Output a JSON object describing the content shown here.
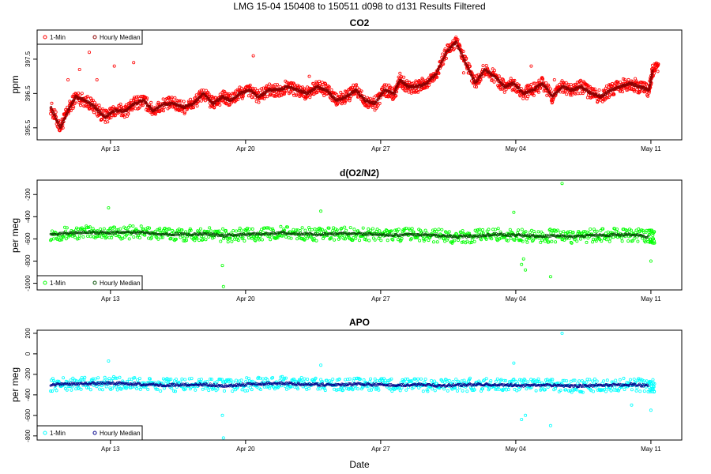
{
  "figure": {
    "title": "LMG   15-04    150408 to 150511     d098 to d131    Results Filtered",
    "xlabel": "Date"
  },
  "chart_data": [
    {
      "type": "scatter",
      "title": "CO2",
      "ylabel": "ppm",
      "x_range_day": [
        9.2,
        42.6
      ],
      "ylim": [
        395.15,
        398.35
      ],
      "y_ticks": [
        395.5,
        396.5,
        397.5
      ],
      "x_ticks": [
        {
          "day": 13,
          "label": "Apr 13"
        },
        {
          "day": 20,
          "label": "Apr 20"
        },
        {
          "day": 27,
          "label": "Apr 27"
        },
        {
          "day": 34,
          "label": "May 04"
        },
        {
          "day": 41,
          "label": "May 11"
        }
      ],
      "legend": {
        "position": "top-left",
        "entries": [
          "1-Min",
          "Hourly Median"
        ]
      },
      "series": [
        {
          "name": "1-Min",
          "color": "#ff0000",
          "fill": false,
          "x": [
            9.9,
            10.4,
            10.8,
            11.2,
            11.7,
            12.2,
            12.7,
            13.2,
            13.8,
            14.2,
            14.7,
            15.2,
            15.8,
            16.3,
            16.8,
            17.3,
            17.8,
            18.3,
            18.8,
            19.2,
            19.7,
            20.2,
            20.7,
            21.2,
            21.7,
            22.2,
            22.7,
            23.2,
            23.7,
            24.2,
            24.7,
            25.2,
            25.7,
            26.2,
            26.7,
            27.2,
            27.7,
            28.0,
            28.4,
            28.9,
            29.4,
            29.9,
            30.4,
            30.9,
            31.4,
            31.9,
            32.4,
            32.9,
            33.4,
            33.9,
            34.4,
            34.9,
            35.4,
            35.9,
            36.4,
            36.9,
            37.4,
            37.9,
            38.4,
            38.9,
            39.4,
            39.9,
            40.4,
            40.9,
            41.1
          ],
          "y": [
            396.1,
            395.5,
            396.0,
            396.4,
            396.3,
            396.1,
            395.8,
            396.0,
            396.0,
            396.2,
            396.3,
            396.0,
            396.2,
            396.2,
            396.1,
            396.2,
            396.5,
            396.2,
            396.4,
            396.3,
            396.5,
            396.6,
            396.4,
            396.6,
            396.6,
            396.7,
            396.6,
            396.5,
            396.7,
            396.6,
            396.3,
            396.4,
            396.6,
            396.3,
            396.2,
            396.6,
            396.5,
            396.9,
            396.7,
            396.7,
            396.8,
            397.1,
            397.7,
            398.0,
            397.4,
            396.8,
            397.2,
            397.0,
            396.7,
            396.8,
            396.5,
            396.6,
            396.8,
            396.4,
            396.7,
            396.6,
            396.7,
            396.5,
            396.4,
            396.6,
            396.7,
            396.8,
            396.7,
            396.6,
            397.2
          ],
          "outliers_x": [
            10.8,
            11.4,
            11.9,
            12.3,
            13.2,
            14.2,
            20.4,
            23.3,
            31.3,
            34.8,
            36.0
          ],
          "outliers_y": [
            396.9,
            397.2,
            397.7,
            396.9,
            397.3,
            397.4,
            397.6,
            397.0,
            397.1,
            397.3,
            396.9
          ]
        },
        {
          "name": "Hourly Median",
          "color": "#8b0000",
          "fill": false,
          "x": [
            9.9,
            10.4,
            10.8,
            11.2,
            11.7,
            12.2,
            12.7,
            13.2,
            13.8,
            14.2,
            14.7,
            15.2,
            15.8,
            16.3,
            16.8,
            17.3,
            17.8,
            18.3,
            18.8,
            19.2,
            19.7,
            20.2,
            20.7,
            21.2,
            21.7,
            22.2,
            22.7,
            23.2,
            23.7,
            24.2,
            24.7,
            25.2,
            25.7,
            26.2,
            26.7,
            27.2,
            27.7,
            28.0,
            28.4,
            28.9,
            29.4,
            29.9,
            30.4,
            30.9,
            31.4,
            31.9,
            32.4,
            32.9,
            33.4,
            33.9,
            34.4,
            34.9,
            35.4,
            35.9,
            36.4,
            36.9,
            37.4,
            37.9,
            38.4,
            38.9,
            39.4,
            39.9,
            40.4,
            40.9,
            41.1
          ],
          "y": [
            396.1,
            395.5,
            396.0,
            396.4,
            396.3,
            396.1,
            395.8,
            396.0,
            396.0,
            396.2,
            396.3,
            396.0,
            396.2,
            396.2,
            396.1,
            396.2,
            396.5,
            396.2,
            396.4,
            396.3,
            396.5,
            396.6,
            396.4,
            396.6,
            396.6,
            396.7,
            396.6,
            396.5,
            396.7,
            396.6,
            396.3,
            396.4,
            396.6,
            396.3,
            396.2,
            396.6,
            396.5,
            396.9,
            396.7,
            396.7,
            396.8,
            397.1,
            397.7,
            398.0,
            397.4,
            396.8,
            397.2,
            397.0,
            396.7,
            396.8,
            396.5,
            396.6,
            396.8,
            396.4,
            396.7,
            396.6,
            396.7,
            396.5,
            396.4,
            396.6,
            396.7,
            396.8,
            396.7,
            396.6,
            397.2
          ]
        }
      ]
    },
    {
      "type": "scatter",
      "title": "d(O2/N2)",
      "ylabel": "per meg",
      "x_range_day": [
        9.2,
        42.6
      ],
      "ylim": [
        -1060,
        -70
      ],
      "y_ticks": [
        -1000,
        -800,
        -600,
        -400,
        -200
      ],
      "x_ticks": [
        {
          "day": 13,
          "label": "Apr 13"
        },
        {
          "day": 20,
          "label": "Apr 20"
        },
        {
          "day": 27,
          "label": "Apr 27"
        },
        {
          "day": 34,
          "label": "May 04"
        },
        {
          "day": 41,
          "label": "May 11"
        }
      ],
      "legend": {
        "position": "bottom-left",
        "entries": [
          "1-Min",
          "Hourly Median"
        ]
      },
      "series": [
        {
          "name": "1-Min",
          "color": "#00ff00",
          "fill": false,
          "x": [
            9.9,
            10.9,
            11.9,
            12.9,
            13.9,
            14.9,
            15.9,
            16.9,
            17.9,
            18.9,
            19.9,
            20.9,
            21.9,
            22.9,
            23.9,
            24.9,
            25.9,
            26.9,
            27.9,
            28.9,
            29.9,
            30.9,
            31.9,
            32.9,
            33.9,
            34.9,
            35.9,
            36.9,
            37.9,
            38.9,
            39.9,
            40.9
          ],
          "y": [
            -555,
            -550,
            -540,
            -545,
            -540,
            -545,
            -555,
            -560,
            -555,
            -570,
            -560,
            -555,
            -545,
            -555,
            -560,
            -550,
            -555,
            -560,
            -565,
            -560,
            -570,
            -580,
            -575,
            -560,
            -565,
            -575,
            -570,
            -580,
            -570,
            -565,
            -560,
            -580
          ],
          "outliers_x": [
            12.9,
            18.8,
            18.85,
            23.9,
            33.9,
            34.3,
            34.5,
            34.4,
            35.8,
            36.4,
            40.0,
            41.0
          ],
          "outliers_y": [
            -320,
            -840,
            -1030,
            -350,
            -360,
            -830,
            -880,
            -780,
            -940,
            -100,
            -620,
            -800
          ]
        },
        {
          "name": "Hourly Median",
          "color": "#004d00",
          "fill": false,
          "x": [
            9.9,
            10.9,
            11.9,
            12.9,
            13.9,
            14.9,
            15.9,
            16.9,
            17.9,
            18.9,
            19.9,
            20.9,
            21.9,
            22.9,
            23.9,
            24.9,
            25.9,
            26.9,
            27.9,
            28.9,
            29.9,
            30.9,
            31.9,
            32.9,
            33.9,
            34.9,
            35.9,
            36.9,
            37.9,
            38.9,
            39.9,
            40.9
          ],
          "y": [
            -555,
            -550,
            -540,
            -545,
            -540,
            -545,
            -555,
            -560,
            -555,
            -570,
            -560,
            -555,
            -545,
            -555,
            -560,
            -550,
            -555,
            -560,
            -565,
            -560,
            -570,
            -580,
            -575,
            -560,
            -565,
            -575,
            -570,
            -580,
            -570,
            -565,
            -560,
            -580
          ]
        }
      ]
    },
    {
      "type": "scatter",
      "title": "APO",
      "ylabel": "per meg",
      "x_range_day": [
        9.2,
        42.6
      ],
      "ylim": [
        -840,
        230
      ],
      "y_ticks": [
        -800,
        -600,
        -400,
        -200,
        0,
        200
      ],
      "x_ticks": [
        {
          "day": 13,
          "label": "Apr 13"
        },
        {
          "day": 20,
          "label": "Apr 20"
        },
        {
          "day": 27,
          "label": "Apr 27"
        },
        {
          "day": 34,
          "label": "May 04"
        },
        {
          "day": 41,
          "label": "May 11"
        }
      ],
      "legend": {
        "position": "bottom-left",
        "entries": [
          "1-Min",
          "Hourly Median"
        ]
      },
      "series": [
        {
          "name": "1-Min",
          "color": "#00ffff",
          "fill": false,
          "x": [
            9.9,
            10.9,
            11.9,
            12.9,
            13.9,
            14.9,
            15.9,
            16.9,
            17.9,
            18.9,
            19.9,
            20.9,
            21.9,
            22.9,
            23.9,
            24.9,
            25.9,
            26.9,
            27.9,
            28.9,
            29.9,
            30.9,
            31.9,
            32.9,
            33.9,
            34.9,
            35.9,
            36.9,
            37.9,
            38.9,
            39.9,
            40.9
          ],
          "y": [
            -300,
            -295,
            -290,
            -285,
            -290,
            -300,
            -305,
            -300,
            -300,
            -310,
            -300,
            -290,
            -285,
            -295,
            -300,
            -300,
            -295,
            -300,
            -305,
            -300,
            -310,
            -305,
            -300,
            -300,
            -305,
            -310,
            -305,
            -315,
            -310,
            -305,
            -300,
            -310
          ],
          "outliers_x": [
            12.9,
            18.8,
            18.85,
            23.9,
            33.9,
            34.3,
            34.5,
            35.8,
            36.4,
            40.0,
            41.0
          ],
          "outliers_y": [
            -70,
            -600,
            -820,
            -110,
            -90,
            -640,
            -600,
            -700,
            200,
            -500,
            -550
          ]
        },
        {
          "name": "Hourly Median",
          "color": "#00008b",
          "fill": false,
          "x": [
            9.9,
            10.9,
            11.9,
            12.9,
            13.9,
            14.9,
            15.9,
            16.9,
            17.9,
            18.9,
            19.9,
            20.9,
            21.9,
            22.9,
            23.9,
            24.9,
            25.9,
            26.9,
            27.9,
            28.9,
            29.9,
            30.9,
            31.9,
            32.9,
            33.9,
            34.9,
            35.9,
            36.9,
            37.9,
            38.9,
            39.9,
            40.9
          ],
          "y": [
            -300,
            -295,
            -290,
            -285,
            -290,
            -300,
            -305,
            -300,
            -300,
            -310,
            -300,
            -290,
            -285,
            -295,
            -300,
            -300,
            -295,
            -300,
            -305,
            -300,
            -310,
            -305,
            -300,
            -300,
            -305,
            -310,
            -305,
            -315,
            -310,
            -305,
            -300,
            -310
          ]
        }
      ]
    }
  ]
}
